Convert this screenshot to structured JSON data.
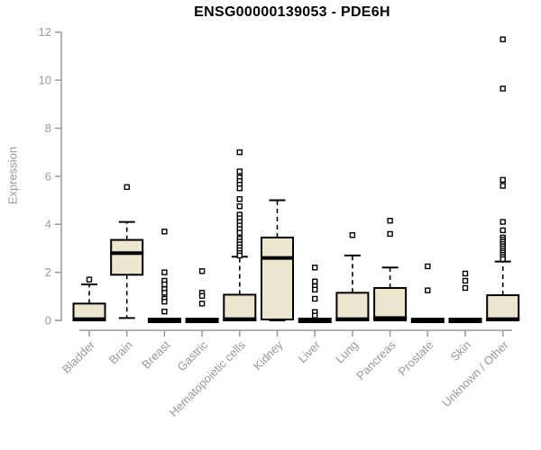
{
  "chart_data": {
    "type": "boxplot",
    "title": "ENSG00000139053 - PDE6H",
    "ylabel": "Expression",
    "xlabel": "",
    "ylim": [
      0,
      12
    ],
    "yticks": [
      0,
      2,
      4,
      6,
      8,
      10,
      12
    ],
    "grid": false,
    "legend": "none",
    "categories": [
      "Bladder",
      "Brain",
      "Breast",
      "Gastric",
      "Hematopoietic cells",
      "Kidney",
      "Liver",
      "Lung",
      "Pancreas",
      "Prostate",
      "Skin",
      "Unknown / Other"
    ],
    "colors": {
      "box_fill": "#EBE6CD",
      "box_stroke": "#000000",
      "median": "#000000",
      "outlier_fill": "#ffffff",
      "axis": "#999999",
      "title_color": "#000000"
    },
    "groups": [
      {
        "label": "Bladder",
        "collapsed": false,
        "q1": 0,
        "median": 0.05,
        "q3": 0.7,
        "whisker_low": null,
        "whisker_high": 1.5,
        "outliers": [
          1.7
        ]
      },
      {
        "label": "Brain",
        "collapsed": false,
        "q1": 1.9,
        "median": 2.8,
        "q3": 3.35,
        "whisker_low": 0.1,
        "whisker_high": 4.1,
        "outliers": [
          5.55
        ]
      },
      {
        "label": "Breast",
        "collapsed": true,
        "q1": 0,
        "median": 0,
        "q3": 0,
        "whisker_low": null,
        "whisker_high": null,
        "outliers": [
          3.7,
          2.0,
          1.65,
          1.5,
          1.3,
          1.15,
          0.9,
          0.78,
          0.37
        ]
      },
      {
        "label": "Gastric",
        "collapsed": true,
        "q1": 0,
        "median": 0,
        "q3": 0,
        "whisker_low": null,
        "whisker_high": null,
        "outliers": [
          2.05,
          1.15,
          1.02,
          0.7
        ]
      },
      {
        "label": "Hematopoietic cells",
        "collapsed": false,
        "q1": 0,
        "median": 0.05,
        "q3": 1.07,
        "whisker_low": null,
        "whisker_high": 2.65,
        "outliers": [
          7.0,
          6.2,
          5.95,
          5.8,
          5.65,
          5.5,
          5.05,
          4.75,
          4.4,
          4.25,
          4.1,
          3.95,
          3.8,
          3.65,
          3.4,
          3.28,
          3.16,
          3.04,
          2.92,
          2.8,
          2.7
        ]
      },
      {
        "label": "Kidney",
        "collapsed": false,
        "q1": 0.04,
        "median": 2.6,
        "q3": 3.45,
        "whisker_low": 0,
        "whisker_high": 5.0,
        "outliers": []
      },
      {
        "label": "Liver",
        "collapsed": true,
        "q1": 0,
        "median": 0,
        "q3": 0,
        "whisker_low": null,
        "whisker_high": null,
        "outliers": [
          2.2,
          1.62,
          1.42,
          1.28,
          0.9,
          0.35,
          0.2
        ]
      },
      {
        "label": "Lung",
        "collapsed": false,
        "q1": 0,
        "median": 0.05,
        "q3": 1.15,
        "whisker_low": null,
        "whisker_high": 2.7,
        "outliers": [
          3.55
        ]
      },
      {
        "label": "Pancreas",
        "collapsed": false,
        "q1": 0,
        "median": 0.1,
        "q3": 1.35,
        "whisker_low": null,
        "whisker_high": 2.2,
        "outliers": [
          4.15,
          3.6
        ]
      },
      {
        "label": "Prostate",
        "collapsed": true,
        "q1": 0,
        "median": 0,
        "q3": 0,
        "whisker_low": null,
        "whisker_high": null,
        "outliers": [
          2.25,
          1.25
        ]
      },
      {
        "label": "Skin",
        "collapsed": true,
        "q1": 0,
        "median": 0,
        "q3": 0,
        "whisker_low": null,
        "whisker_high": null,
        "outliers": [
          1.95,
          1.65,
          1.35
        ]
      },
      {
        "label": "Unknown / Other",
        "collapsed": false,
        "q1": 0,
        "median": 0.05,
        "q3": 1.05,
        "whisker_low": null,
        "whisker_high": 2.45,
        "outliers": [
          11.7,
          9.65,
          5.85,
          5.6,
          4.1,
          3.75,
          3.45,
          3.36,
          3.27,
          3.18,
          3.09,
          3.0,
          2.91,
          2.82,
          2.73,
          2.64,
          2.55
        ]
      }
    ]
  }
}
